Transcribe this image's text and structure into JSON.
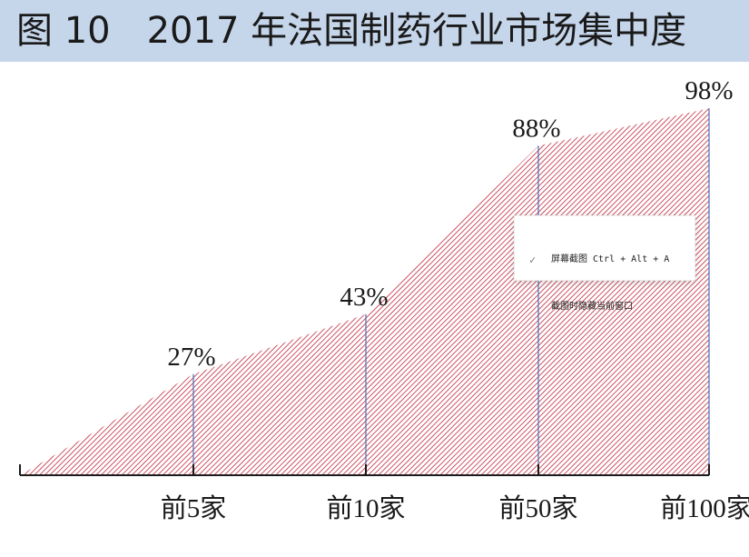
{
  "title": "图 10　2017 年法国制药行业市场集中度",
  "chart_data": {
    "type": "area",
    "categories": [
      "前5家",
      "前10家",
      "前50家",
      "前100家"
    ],
    "values": [
      27,
      43,
      88,
      98
    ],
    "data_labels": [
      "27%",
      "43%",
      "88%",
      "98%"
    ],
    "ylim": [
      0,
      100
    ],
    "fill_color": "#c0283a",
    "line_color": "#4a6fb5"
  },
  "context_menu": {
    "items": [
      {
        "label": "屏幕截图 Ctrl + Alt + A",
        "checked": false
      },
      {
        "label": "截图时隐藏当前窗口",
        "checked": true
      }
    ]
  }
}
